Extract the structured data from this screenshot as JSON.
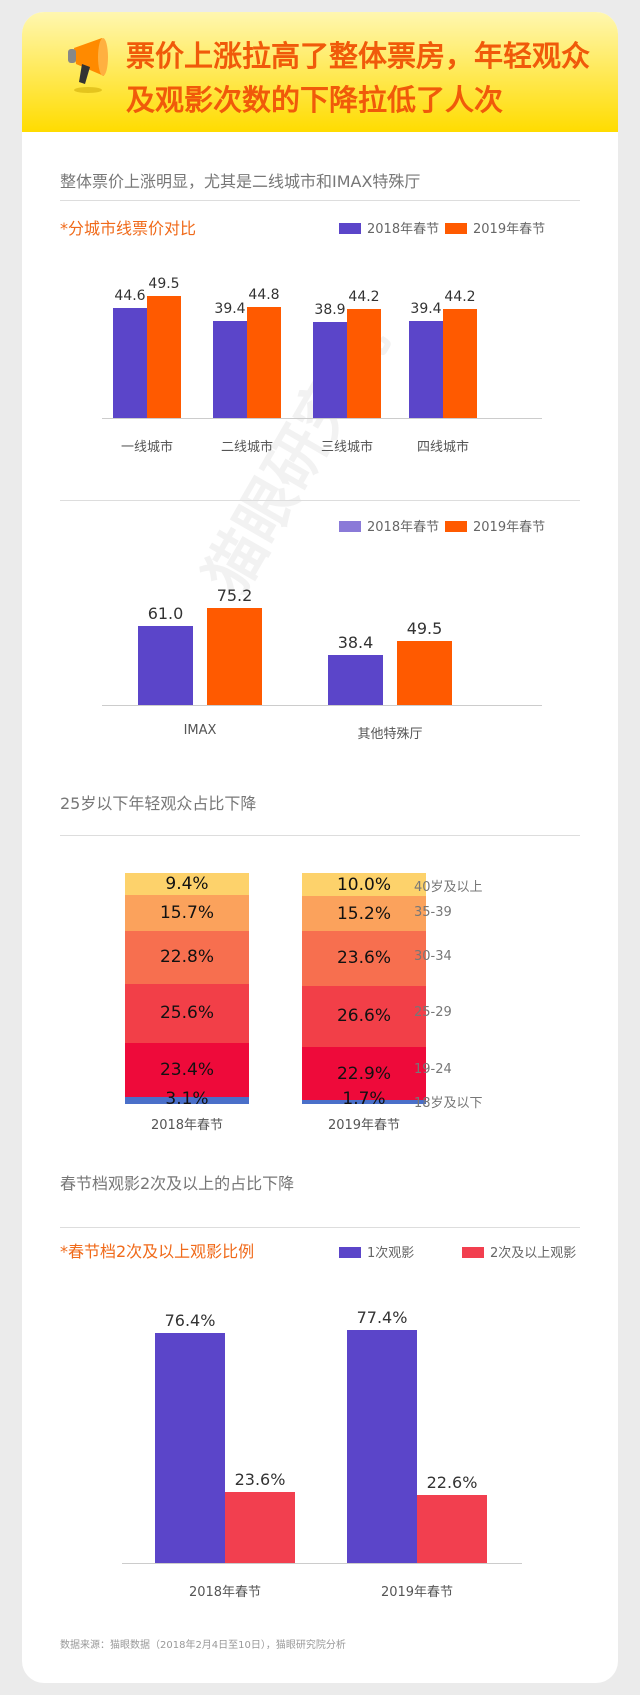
{
  "header": {
    "title": "票价上涨拉高了整体票房，年轻观众及观影次数的下降拉低了人次"
  },
  "watermark": "猫眼研究院",
  "sections": [
    "整体票价上涨明显，尤其是二线城市和IMAX特殊厅",
    "25岁以下年轻观众占比下降",
    "春节档观影2次及以上的占比下降"
  ],
  "footer": "数据来源：猫眼数据（2018年2月4日至10日），猫眼研究院分析",
  "chart_data": [
    {
      "type": "bar",
      "title": "*分城市线票价对比",
      "categories": [
        "一线城市",
        "二线城市",
        "三线城市",
        "四线城市"
      ],
      "series": [
        {
          "name": "2018年春节",
          "color": "#5b45c9",
          "values": [
            44.6,
            39.4,
            38.9,
            39.4
          ],
          "labels": [
            "44.6",
            "39.4",
            "38.9",
            "39.4"
          ]
        },
        {
          "name": "2019年春节",
          "color": "#ff5a00",
          "values": [
            49.5,
            44.8,
            44.2,
            44.2
          ],
          "labels": [
            "49.5",
            "44.8",
            "44.2",
            "44.2"
          ]
        }
      ],
      "ylim": [
        0,
        55
      ]
    },
    {
      "type": "bar",
      "title": "",
      "categories": [
        "IMAX",
        "其他特殊厅"
      ],
      "legend": [
        {
          "name": "2018年春节",
          "color": "#8a7ad8"
        },
        {
          "name": "2019年春节",
          "color": "#ff5a00"
        }
      ],
      "series": [
        {
          "name": "2018年春节",
          "color": "#5b45c9",
          "values": [
            61.0,
            38.4
          ],
          "labels": [
            "61.0",
            "38.4"
          ]
        },
        {
          "name": "2019年春节",
          "color": "#ff5a00",
          "values": [
            75.2,
            49.5
          ],
          "labels": [
            "75.2",
            "49.5"
          ]
        }
      ],
      "ylim": [
        0,
        85
      ]
    },
    {
      "type": "bar",
      "stacked": true,
      "title": "25岁以下年轻观众占比下降",
      "categories": [
        "2018年春节",
        "2019年春节"
      ],
      "series": [
        {
          "name": "40岁及以上",
          "color": "#fdd26b",
          "values": [
            9.4,
            10.0
          ],
          "labels": [
            "9.4%",
            "10.0%"
          ]
        },
        {
          "name": "35-39",
          "color": "#fba25c",
          "values": [
            15.7,
            15.2
          ],
          "labels": [
            "15.7%",
            "15.2%"
          ]
        },
        {
          "name": "30-34",
          "color": "#f76f4f",
          "values": [
            22.8,
            23.6
          ],
          "labels": [
            "22.8%",
            "23.6%"
          ]
        },
        {
          "name": "25-29",
          "color": "#f23f48",
          "values": [
            25.6,
            26.6
          ],
          "labels": [
            "25.6%",
            "26.6%"
          ]
        },
        {
          "name": "19-24",
          "color": "#ee0a3a",
          "values": [
            23.4,
            22.9
          ],
          "labels": [
            "23.4%",
            "22.9%"
          ]
        },
        {
          "name": "18岁及以下",
          "color": "#4a6fc9",
          "values": [
            3.1,
            1.7
          ],
          "labels": [
            "3.1%",
            "1.7%"
          ]
        }
      ]
    },
    {
      "type": "bar",
      "title": "*春节档2次及以上观影比例",
      "categories": [
        "2018年春节",
        "2019年春节"
      ],
      "series": [
        {
          "name": "1次观影",
          "color": "#5b45c9",
          "values": [
            76.4,
            77.4
          ],
          "labels": [
            "76.4%",
            "77.4%"
          ]
        },
        {
          "name": "2次及以上观影",
          "color": "#f23f4f",
          "values": [
            23.6,
            22.6
          ],
          "labels": [
            "23.6%",
            "22.6%"
          ]
        }
      ],
      "ylim": [
        0,
        85
      ]
    }
  ]
}
